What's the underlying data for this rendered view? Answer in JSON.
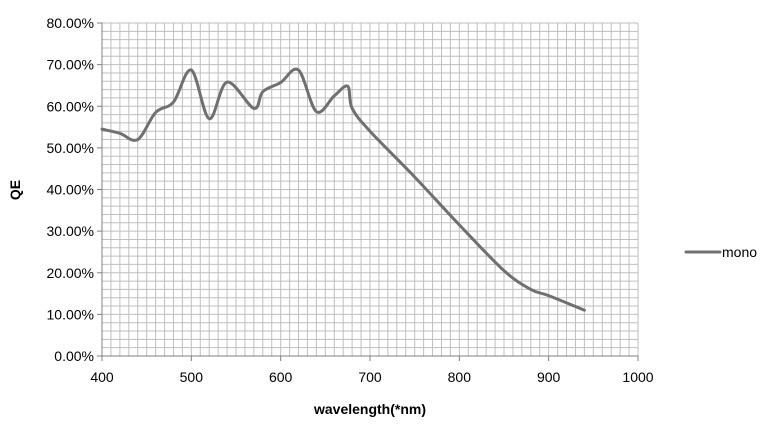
{
  "chart_data": {
    "type": "line",
    "title": "",
    "xlabel": "wavelength(*nm)",
    "ylabel": "QE",
    "xlim": [
      400,
      1000
    ],
    "ylim": [
      0,
      80
    ],
    "x_ticks": [
      400,
      500,
      600,
      700,
      800,
      900,
      1000
    ],
    "x_tick_labels": [
      "400",
      "500",
      "600",
      "700",
      "800",
      "900",
      "1000"
    ],
    "y_ticks": [
      0,
      10,
      20,
      30,
      40,
      50,
      60,
      70,
      80
    ],
    "y_tick_labels": [
      "0.00%",
      "10.00%",
      "20.00%",
      "30.00%",
      "40.00%",
      "50.00%",
      "60.00%",
      "70.00%",
      "80.00%"
    ],
    "grid": true,
    "legend_position": "right",
    "series": [
      {
        "name": "mono",
        "color": "#707070",
        "x": [
          400,
          420,
          440,
          460,
          480,
          500,
          520,
          540,
          570,
          580,
          600,
          620,
          640,
          660,
          675,
          680,
          700,
          750,
          800,
          850,
          880,
          900,
          940
        ],
        "y": [
          54.5,
          53.5,
          52.0,
          58.5,
          61.0,
          68.7,
          57.0,
          65.8,
          59.5,
          63.5,
          65.7,
          68.7,
          58.7,
          62.5,
          64.8,
          59.5,
          54.0,
          43.0,
          31.5,
          20.5,
          16.0,
          14.5,
          11.0
        ]
      }
    ]
  }
}
